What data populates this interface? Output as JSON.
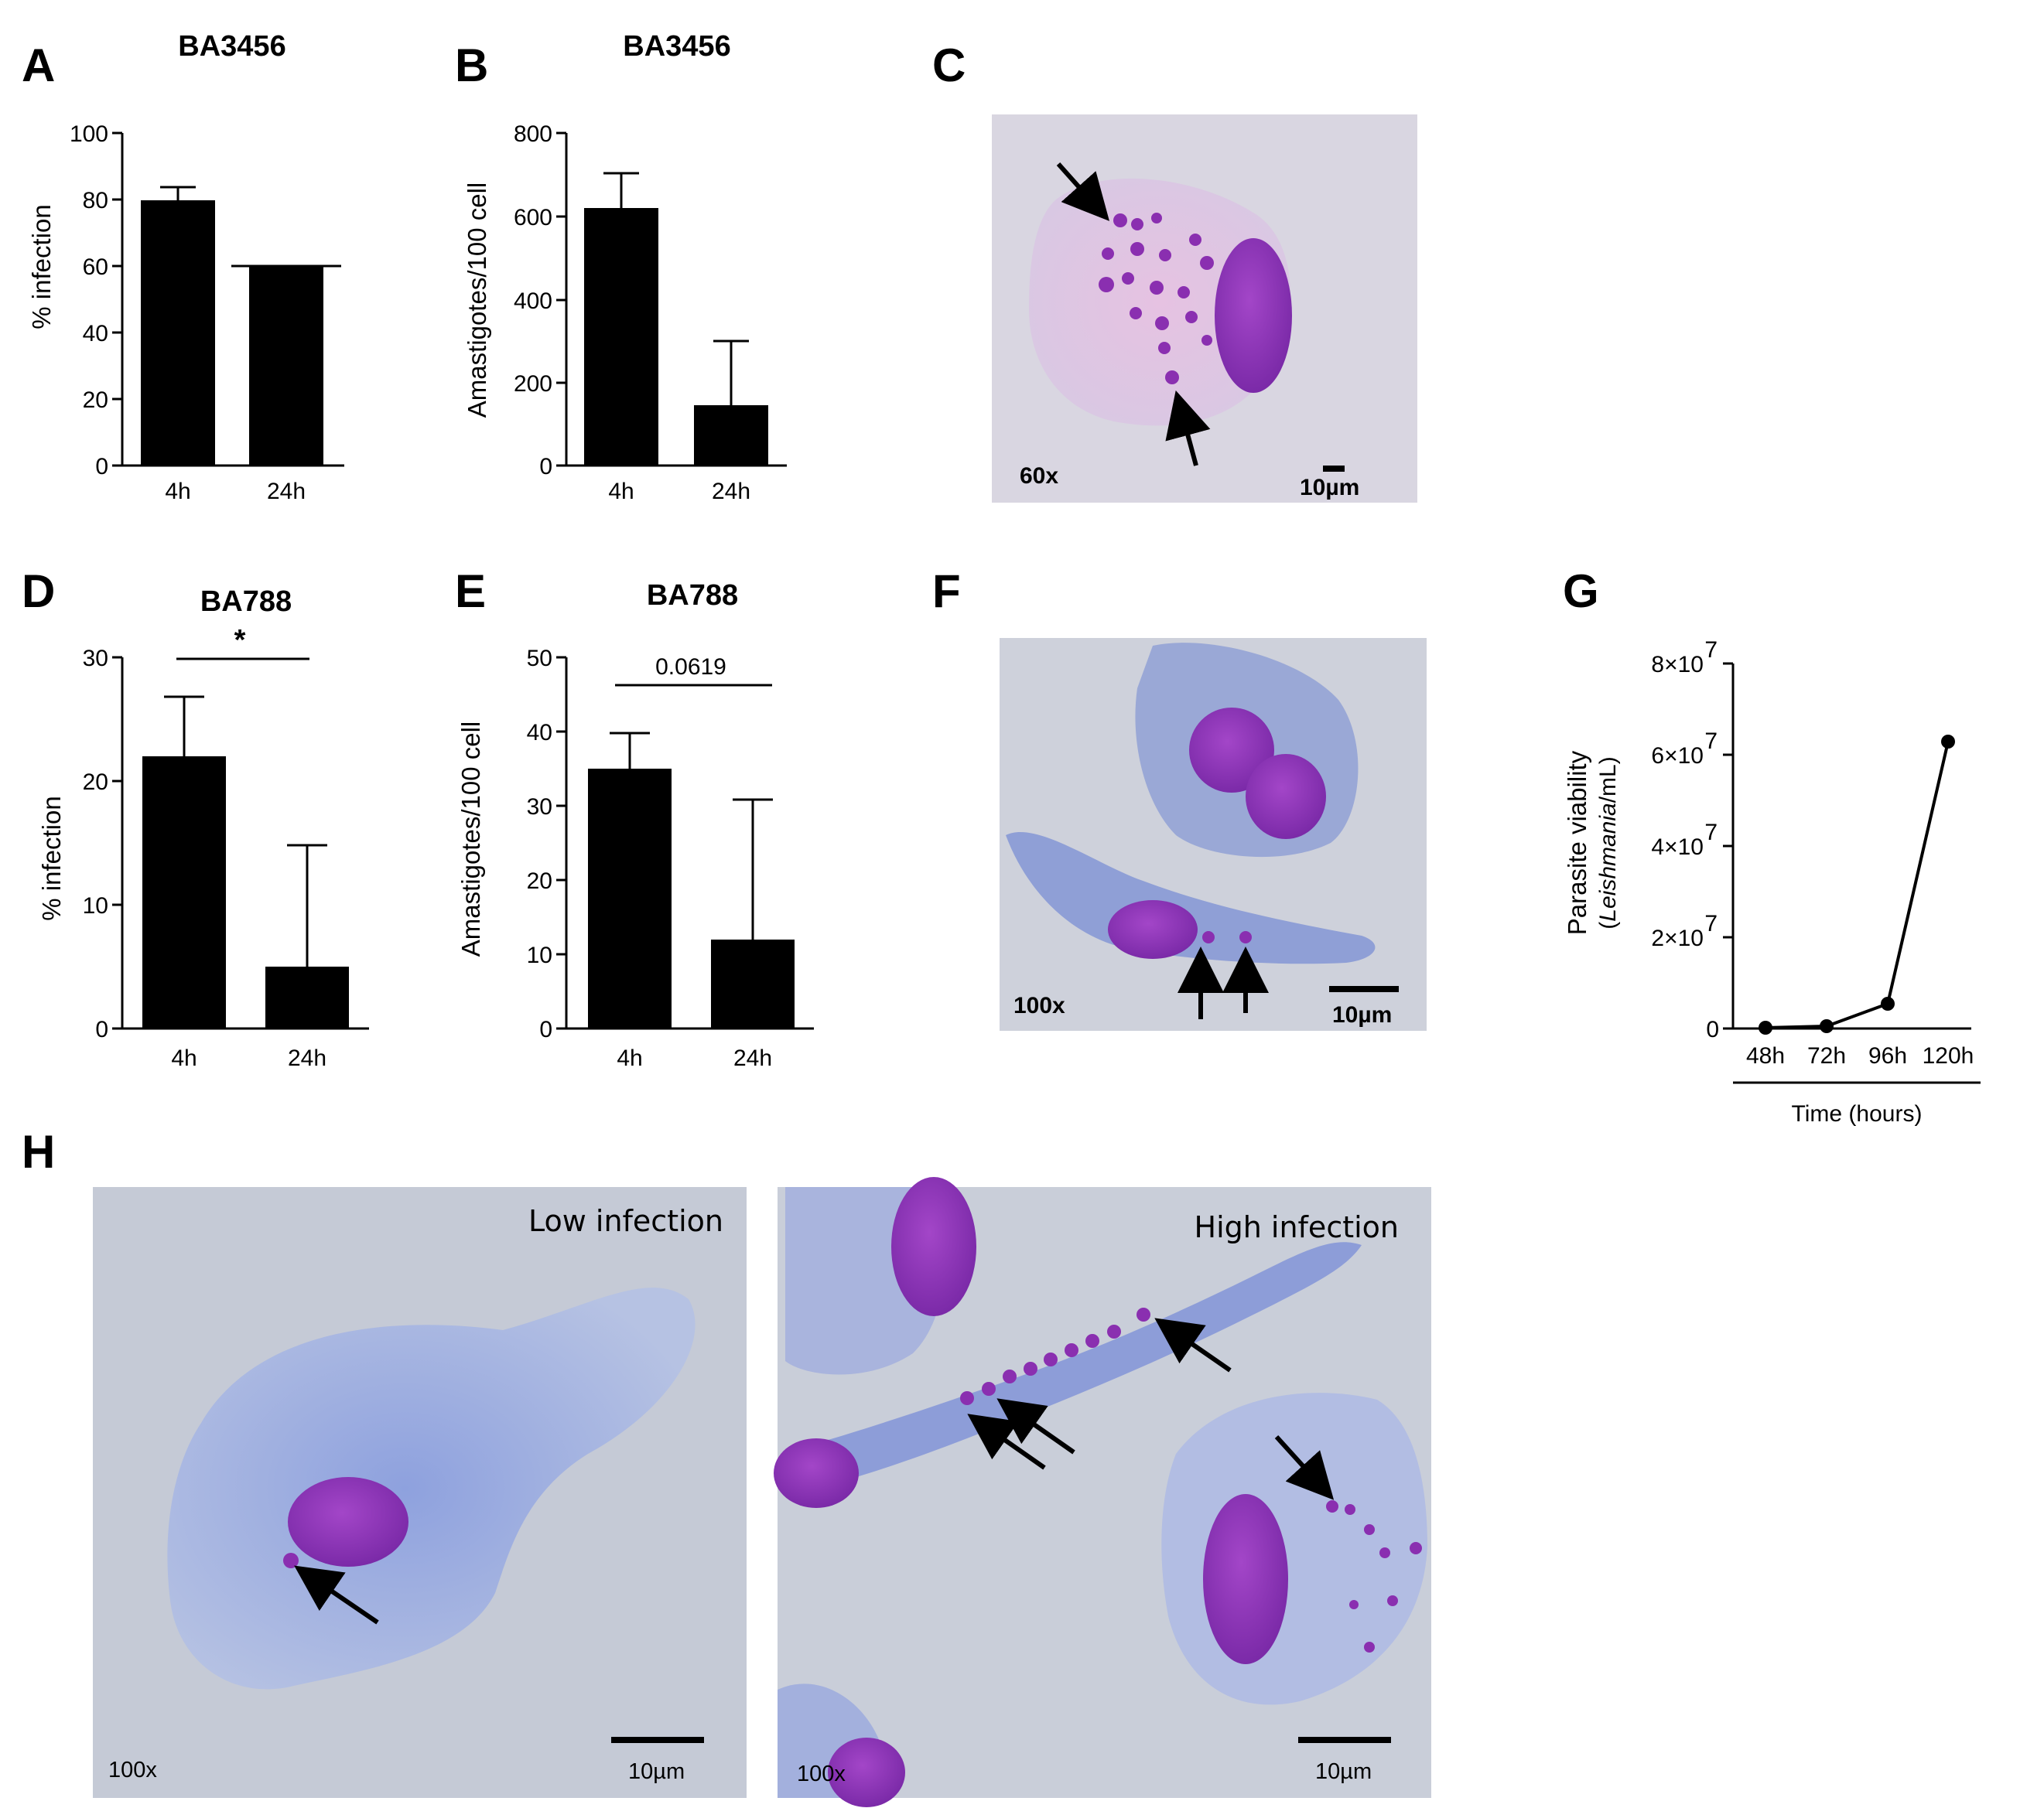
{
  "panel_letters": {
    "A": "A",
    "B": "B",
    "C": "C",
    "D": "D",
    "E": "E",
    "F": "F",
    "G": "G",
    "H": "H"
  },
  "chart_data": [
    {
      "id": "A",
      "type": "bar",
      "title": "BA3456",
      "ylabel": "% infection",
      "categories": [
        "4h",
        "24h"
      ],
      "values": [
        80,
        60
      ],
      "errors": [
        4,
        0
      ],
      "ylim": [
        0,
        100
      ],
      "yticks": [
        "0",
        "20",
        "40",
        "60",
        "80",
        "100"
      ]
    },
    {
      "id": "B",
      "type": "bar",
      "title": "BA3456",
      "ylabel": "Amastigotes/100 cell",
      "categories": [
        "4h",
        "24h"
      ],
      "values": [
        620,
        145
      ],
      "errors": [
        85,
        155
      ],
      "ylim": [
        0,
        800
      ],
      "yticks": [
        "0",
        "200",
        "400",
        "600",
        "800"
      ]
    },
    {
      "id": "D",
      "type": "bar",
      "title": "BA788",
      "ylabel": "% infection",
      "categories": [
        "4h",
        "24h"
      ],
      "values": [
        22,
        5
      ],
      "errors": [
        4.8,
        9.8
      ],
      "ylim": [
        0,
        30
      ],
      "yticks": [
        "0",
        "10",
        "20",
        "30"
      ],
      "annotation": "*"
    },
    {
      "id": "E",
      "type": "bar",
      "title": "BA788",
      "ylabel": "Amastigotes/100 cell",
      "categories": [
        "4h",
        "24h"
      ],
      "values": [
        35,
        12
      ],
      "errors": [
        4.8,
        18.8
      ],
      "ylim": [
        0,
        50
      ],
      "yticks": [
        "0",
        "10",
        "20",
        "30",
        "40",
        "50"
      ],
      "annotation": "0.0619"
    },
    {
      "id": "G",
      "type": "line",
      "ylabel": "Parasite viability",
      "ylabel_sub_italic": "Leishmania",
      "ylabel_sub_unit": "/mL",
      "xlabel": "Time (hours)",
      "categories": [
        "48h",
        "72h",
        "96h",
        "120h"
      ],
      "values": [
        200000,
        400000,
        5500000,
        63000000
      ],
      "ylim": [
        0,
        80000000
      ],
      "yticks": [
        "0",
        "2×10",
        "4×10",
        "6×10",
        "8×10"
      ],
      "ytick_exponent": "7"
    }
  ],
  "micrographs": {
    "C": {
      "magnification": "60x",
      "scale": "10µm"
    },
    "F": {
      "magnification": "100x",
      "scale": "10µm"
    },
    "H_left": {
      "magnification": "100x",
      "scale": "10µm",
      "label": "Low infection"
    },
    "H_right": {
      "magnification": "100x",
      "scale": "10µm",
      "label": "High infection"
    }
  }
}
